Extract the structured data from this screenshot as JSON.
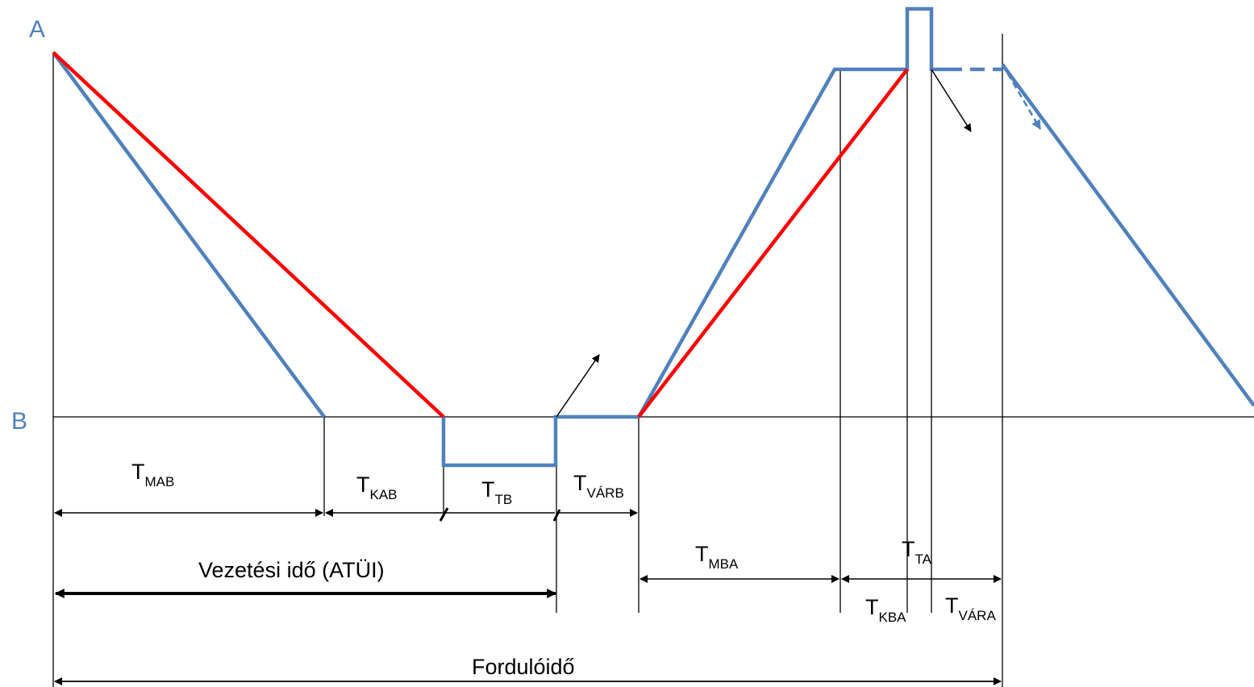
{
  "stations": {
    "a": "A",
    "b": "B",
    "color": "#4F81BD"
  },
  "colors": {
    "blue": "#4F81BD",
    "red": "#FF0000",
    "black": "#000000"
  },
  "periods": {
    "t_mab": {
      "main": "T",
      "sub": "MAB"
    },
    "t_kab": {
      "main": "T",
      "sub": "KAB"
    },
    "t_tb": {
      "main": "T",
      "sub": "TB"
    },
    "t_varb": {
      "main": "T",
      "sub": "VÁRB"
    },
    "t_mba": {
      "main": "T",
      "sub": "MBA"
    },
    "t_ta": {
      "main": "T",
      "sub": "TA"
    },
    "t_kba": {
      "main": "T",
      "sub": "KBA"
    },
    "t_vara": {
      "main": "T",
      "sub": "VÁRA"
    }
  },
  "spans": {
    "driving_time": "Vezetési idő (ATÜI)",
    "turnaround_time": "Fordulóidő"
  }
}
